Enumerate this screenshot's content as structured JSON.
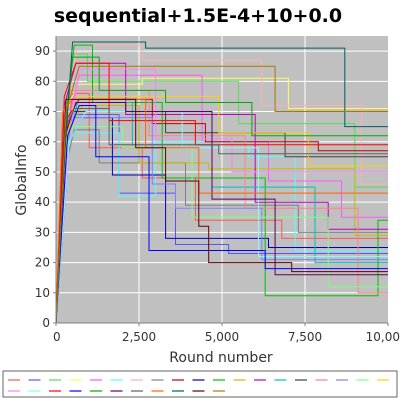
{
  "chart_data": {
    "type": "line",
    "title": "sequential+1.5E-4+10+0.0",
    "xlabel": "Round number",
    "ylabel": "GlobalInfo",
    "xlim": [
      0,
      10000
    ],
    "ylim": [
      0,
      95
    ],
    "xticks": [
      "0",
      "2,500",
      "5,000",
      "7,500",
      "10,00"
    ],
    "yticks": [
      "0",
      "10",
      "20",
      "30",
      "40",
      "50",
      "60",
      "70",
      "80",
      "90"
    ],
    "xtick_values": [
      0,
      2500,
      5000,
      7500,
      10000
    ],
    "ytick_values": [
      0,
      10,
      20,
      30,
      40,
      50,
      60,
      70,
      80,
      90
    ],
    "grid": true,
    "legend_position": "bottom",
    "colors": {
      "plot_background": "#c0c0c0",
      "grid": "#ffffff",
      "axis": "#808080"
    },
    "series": [
      {
        "color": "#FF5555",
        "points": [
          [
            0,
            0
          ],
          [
            250,
            55
          ],
          [
            500,
            76
          ],
          [
            1000,
            76
          ],
          [
            1000,
            58
          ],
          [
            2600,
            58
          ],
          [
            2600,
            48
          ],
          [
            4200,
            48
          ],
          [
            4200,
            34
          ],
          [
            6800,
            34
          ],
          [
            6800,
            28
          ],
          [
            10000,
            28
          ]
        ]
      },
      {
        "color": "#5555FF",
        "points": [
          [
            0,
            0
          ],
          [
            350,
            62
          ],
          [
            600,
            69
          ],
          [
            1900,
            69
          ],
          [
            1900,
            43
          ],
          [
            3600,
            43
          ],
          [
            3600,
            26
          ],
          [
            5200,
            26
          ],
          [
            5200,
            23
          ],
          [
            10000,
            23
          ]
        ]
      },
      {
        "color": "#55DD55",
        "points": [
          [
            0,
            0
          ],
          [
            250,
            65
          ],
          [
            500,
            89
          ],
          [
            950,
            89
          ],
          [
            950,
            80
          ],
          [
            5500,
            80
          ],
          [
            5500,
            66
          ],
          [
            9000,
            66
          ],
          [
            9000,
            45
          ],
          [
            10000,
            45
          ]
        ]
      },
      {
        "color": "#FFFF55",
        "points": [
          [
            0,
            0
          ],
          [
            300,
            70
          ],
          [
            650,
            79
          ],
          [
            2600,
            79
          ],
          [
            2600,
            81
          ],
          [
            7000,
            81
          ],
          [
            7000,
            71
          ],
          [
            10000,
            71
          ]
        ]
      },
      {
        "color": "#FF55FF",
        "points": [
          [
            0,
            0
          ],
          [
            350,
            66
          ],
          [
            700,
            82
          ],
          [
            4400,
            82
          ],
          [
            4400,
            60
          ],
          [
            6400,
            60
          ],
          [
            6400,
            47
          ],
          [
            8600,
            47
          ],
          [
            8600,
            35
          ],
          [
            10000,
            35
          ]
        ]
      },
      {
        "color": "#55FFFF",
        "points": [
          [
            0,
            0
          ],
          [
            300,
            57
          ],
          [
            550,
            63
          ],
          [
            1900,
            63
          ],
          [
            1900,
            42
          ],
          [
            3000,
            42
          ],
          [
            3000,
            60
          ],
          [
            5800,
            60
          ],
          [
            5800,
            55
          ],
          [
            7200,
            55
          ],
          [
            7200,
            24
          ],
          [
            10000,
            24
          ]
        ]
      },
      {
        "color": "#FFAFAF",
        "points": [
          [
            0,
            0
          ],
          [
            350,
            71
          ],
          [
            650,
            92
          ],
          [
            2600,
            92
          ],
          [
            2600,
            87
          ],
          [
            6200,
            87
          ],
          [
            6200,
            72
          ],
          [
            9200,
            72
          ],
          [
            9200,
            46
          ],
          [
            10000,
            46
          ]
        ]
      },
      {
        "color": "#808080",
        "points": [
          [
            0,
            0
          ],
          [
            250,
            50
          ],
          [
            550,
            64
          ],
          [
            1300,
            64
          ],
          [
            1300,
            53
          ],
          [
            3900,
            53
          ],
          [
            3900,
            39
          ],
          [
            7300,
            39
          ],
          [
            7300,
            30
          ],
          [
            10000,
            30
          ]
        ]
      },
      {
        "color": "#C00000",
        "points": [
          [
            0,
            0
          ],
          [
            350,
            68
          ],
          [
            700,
            74
          ],
          [
            2900,
            74
          ],
          [
            2900,
            66
          ],
          [
            4500,
            66
          ],
          [
            4500,
            60
          ],
          [
            7900,
            60
          ],
          [
            7900,
            57
          ],
          [
            10000,
            57
          ]
        ]
      },
      {
        "color": "#0000C0",
        "points": [
          [
            0,
            0
          ],
          [
            400,
            60
          ],
          [
            800,
            68
          ],
          [
            1700,
            68
          ],
          [
            1700,
            49
          ],
          [
            3300,
            49
          ],
          [
            3300,
            28
          ],
          [
            6400,
            28
          ],
          [
            6400,
            25
          ],
          [
            10000,
            25
          ]
        ]
      },
      {
        "color": "#00C000",
        "points": [
          [
            0,
            0
          ],
          [
            300,
            68
          ],
          [
            550,
            92
          ],
          [
            1100,
            92
          ],
          [
            1100,
            73
          ],
          [
            3200,
            73
          ],
          [
            3200,
            48
          ],
          [
            6300,
            48
          ],
          [
            6300,
            9
          ],
          [
            9700,
            9
          ],
          [
            9700,
            34
          ],
          [
            10000,
            34
          ]
        ]
      },
      {
        "color": "#C0C000",
        "points": [
          [
            0,
            0
          ],
          [
            350,
            64
          ],
          [
            800,
            72
          ],
          [
            2500,
            72
          ],
          [
            2500,
            53
          ],
          [
            4600,
            53
          ],
          [
            4600,
            51
          ],
          [
            9000,
            51
          ],
          [
            9000,
            29
          ],
          [
            10000,
            29
          ]
        ]
      },
      {
        "color": "#C000C0",
        "points": [
          [
            0,
            0
          ],
          [
            250,
            72
          ],
          [
            600,
            86
          ],
          [
            2100,
            86
          ],
          [
            2100,
            69
          ],
          [
            6000,
            69
          ],
          [
            6000,
            40
          ],
          [
            8200,
            40
          ],
          [
            8200,
            31
          ],
          [
            10000,
            31
          ]
        ]
      },
      {
        "color": "#00C0C0",
        "points": [
          [
            0,
            0
          ],
          [
            300,
            58
          ],
          [
            650,
            73
          ],
          [
            2300,
            73
          ],
          [
            2300,
            59
          ],
          [
            4700,
            59
          ],
          [
            4700,
            45
          ],
          [
            7800,
            45
          ],
          [
            7800,
            20
          ],
          [
            10000,
            20
          ]
        ]
      },
      {
        "color": "#404040",
        "points": [
          [
            0,
            0
          ],
          [
            300,
            60
          ],
          [
            500,
            70
          ],
          [
            3300,
            70
          ],
          [
            3300,
            63
          ],
          [
            6900,
            63
          ],
          [
            6900,
            55
          ],
          [
            10000,
            55
          ]
        ]
      },
      {
        "color": "#FF8080",
        "points": [
          [
            0,
            0
          ],
          [
            250,
            55
          ],
          [
            400,
            77
          ],
          [
            2800,
            77
          ],
          [
            2800,
            62
          ],
          [
            5700,
            62
          ],
          [
            5700,
            38
          ],
          [
            9100,
            38
          ],
          [
            9100,
            10
          ],
          [
            10000,
            10
          ]
        ]
      },
      {
        "color": "#8080FF",
        "points": [
          [
            0,
            0
          ],
          [
            200,
            60
          ],
          [
            500,
            68
          ],
          [
            2900,
            68
          ],
          [
            2900,
            46
          ],
          [
            3600,
            46
          ],
          [
            3600,
            38
          ],
          [
            6200,
            38
          ],
          [
            6200,
            21
          ],
          [
            10000,
            21
          ]
        ]
      },
      {
        "color": "#80FF80",
        "points": [
          [
            0,
            0
          ],
          [
            250,
            54
          ],
          [
            500,
            65
          ],
          [
            2000,
            65
          ],
          [
            2000,
            58
          ],
          [
            4100,
            58
          ],
          [
            4100,
            35
          ],
          [
            8200,
            35
          ],
          [
            8200,
            12
          ],
          [
            10000,
            12
          ]
        ]
      },
      {
        "color": "#FFD000",
        "points": [
          [
            0,
            0
          ],
          [
            300,
            60
          ],
          [
            600,
            75
          ],
          [
            4900,
            75
          ],
          [
            4900,
            63
          ],
          [
            7600,
            63
          ],
          [
            7600,
            52
          ],
          [
            10000,
            52
          ]
        ]
      },
      {
        "color": "#FF80FF",
        "points": [
          [
            0,
            0
          ],
          [
            350,
            56
          ],
          [
            700,
            84
          ],
          [
            3000,
            84
          ],
          [
            3000,
            61
          ],
          [
            5300,
            61
          ],
          [
            5300,
            50
          ],
          [
            10000,
            50
          ]
        ]
      },
      {
        "color": "#80FFFF",
        "points": [
          [
            0,
            0
          ],
          [
            400,
            60
          ],
          [
            900,
            70
          ],
          [
            3800,
            70
          ],
          [
            3800,
            58
          ],
          [
            6100,
            58
          ],
          [
            6100,
            22
          ],
          [
            10000,
            22
          ]
        ]
      },
      {
        "color": "#FF0000",
        "points": [
          [
            0,
            0
          ],
          [
            250,
            75
          ],
          [
            600,
            86
          ],
          [
            1600,
            86
          ],
          [
            1600,
            67
          ],
          [
            4200,
            67
          ],
          [
            4200,
            59
          ],
          [
            10000,
            59
          ]
        ]
      },
      {
        "color": "#0000FF",
        "points": [
          [
            0,
            0
          ],
          [
            350,
            62
          ],
          [
            700,
            72
          ],
          [
            1200,
            72
          ],
          [
            1200,
            55
          ],
          [
            2800,
            55
          ],
          [
            2800,
            24
          ],
          [
            6300,
            24
          ],
          [
            6300,
            18
          ],
          [
            10000,
            18
          ]
        ]
      },
      {
        "color": "#00AA00",
        "points": [
          [
            0,
            0
          ],
          [
            250,
            58
          ],
          [
            500,
            88
          ],
          [
            1300,
            88
          ],
          [
            1300,
            77
          ],
          [
            3300,
            77
          ],
          [
            3300,
            73
          ],
          [
            5900,
            73
          ],
          [
            5900,
            62
          ],
          [
            10000,
            62
          ]
        ]
      },
      {
        "color": "#600060",
        "points": [
          [
            0,
            0
          ],
          [
            300,
            63
          ],
          [
            600,
            73
          ],
          [
            2100,
            73
          ],
          [
            2100,
            70
          ],
          [
            4700,
            70
          ],
          [
            4700,
            41
          ],
          [
            6600,
            41
          ],
          [
            6600,
            16
          ],
          [
            10000,
            16
          ]
        ]
      },
      {
        "color": "#606060",
        "points": [
          [
            0,
            0
          ],
          [
            300,
            65
          ],
          [
            550,
            71
          ],
          [
            1600,
            71
          ],
          [
            1600,
            59
          ],
          [
            4900,
            59
          ],
          [
            4900,
            56
          ],
          [
            10000,
            56
          ]
        ]
      },
      {
        "color": "#FF6000",
        "points": [
          [
            0,
            0
          ],
          [
            200,
            70
          ],
          [
            500,
            74
          ],
          [
            2700,
            74
          ],
          [
            2700,
            58
          ],
          [
            4300,
            58
          ],
          [
            4300,
            43
          ],
          [
            10000,
            43
          ]
        ]
      },
      {
        "color": "#006060",
        "points": [
          [
            0,
            0
          ],
          [
            250,
            55
          ],
          [
            500,
            93
          ],
          [
            2700,
            93
          ],
          [
            2700,
            91
          ],
          [
            8700,
            91
          ],
          [
            8700,
            65
          ],
          [
            10000,
            65
          ]
        ]
      },
      {
        "color": "#600000",
        "points": [
          [
            0,
            0
          ],
          [
            300,
            74
          ],
          [
            700,
            74
          ],
          [
            2400,
            74
          ],
          [
            2400,
            58
          ],
          [
            3300,
            58
          ],
          [
            3300,
            47
          ],
          [
            4300,
            47
          ],
          [
            4300,
            32
          ],
          [
            4600,
            32
          ],
          [
            4600,
            20
          ],
          [
            7100,
            20
          ],
          [
            7100,
            17
          ],
          [
            10000,
            17
          ]
        ]
      },
      {
        "color": "#AA7700",
        "points": [
          [
            0,
            0
          ],
          [
            300,
            70
          ],
          [
            700,
            85
          ],
          [
            6600,
            85
          ],
          [
            6600,
            70
          ],
          [
            10000,
            70
          ]
        ]
      }
    ]
  }
}
